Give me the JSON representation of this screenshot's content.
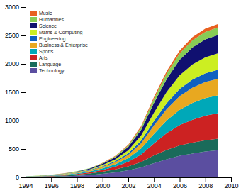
{
  "chart_data": {
    "type": "area",
    "stacked": true,
    "x": [
      1994,
      1995,
      1996,
      1997,
      1998,
      1999,
      2000,
      2001,
      2002,
      2003,
      2004,
      2005,
      2006,
      2007,
      2008,
      2009
    ],
    "series": [
      {
        "name": "Technology",
        "color": "#5b4ea0",
        "values": [
          5,
          8,
          12,
          18,
          28,
          42,
          62,
          88,
          125,
          175,
          250,
          320,
          380,
          420,
          455,
          478
        ]
      },
      {
        "name": "Language",
        "color": "#1a6b5a",
        "values": [
          3,
          5,
          8,
          12,
          18,
          26,
          38,
          52,
          70,
          98,
          138,
          165,
          182,
          192,
          198,
          202
        ]
      },
      {
        "name": "Arts",
        "color": "#cc2222",
        "values": [
          2,
          4,
          6,
          9,
          14,
          20,
          32,
          50,
          80,
          130,
          210,
          295,
          360,
          405,
          435,
          450
        ]
      },
      {
        "name": "Sports",
        "color": "#00a8b8",
        "values": [
          2,
          3,
          5,
          8,
          12,
          18,
          28,
          42,
          65,
          105,
          168,
          225,
          268,
          295,
          310,
          318
        ]
      },
      {
        "name": "Business & Enterprise",
        "color": "#e8a820",
        "values": [
          2,
          3,
          4,
          6,
          10,
          15,
          24,
          36,
          56,
          92,
          150,
          200,
          242,
          268,
          282,
          290
        ]
      },
      {
        "name": "Engineering",
        "color": "#1060c0",
        "values": [
          1,
          2,
          3,
          4,
          6,
          9,
          14,
          20,
          30,
          48,
          78,
          105,
          128,
          144,
          153,
          158
        ]
      },
      {
        "name": "Maths & Computing",
        "color": "#ccee22",
        "values": [
          1,
          2,
          3,
          5,
          8,
          12,
          20,
          32,
          52,
          88,
          148,
          200,
          240,
          268,
          284,
          292
        ]
      },
      {
        "name": "Science",
        "color": "#101070",
        "values": [
          1,
          2,
          3,
          5,
          8,
          13,
          22,
          36,
          60,
          102,
          170,
          228,
          272,
          300,
          315,
          322
        ]
      },
      {
        "name": "Humanities",
        "color": "#88cc55",
        "values": [
          1,
          1,
          2,
          3,
          4,
          6,
          10,
          16,
          26,
          44,
          72,
          96,
          112,
          123,
          130,
          133
        ]
      },
      {
        "name": "Music",
        "color": "#e86020",
        "values": [
          0,
          1,
          1,
          1,
          2,
          3,
          5,
          8,
          12,
          20,
          32,
          42,
          50,
          56,
          59,
          61
        ]
      }
    ],
    "xlim": [
      1994,
      2010
    ],
    "xticks": [
      1994,
      1996,
      1998,
      2000,
      2002,
      2004,
      2006,
      2008,
      2010
    ],
    "ylim": [
      0,
      3000
    ],
    "yticks": [
      0,
      500,
      1000,
      1500,
      2000,
      2500,
      3000
    ],
    "legend": "upper left",
    "grid": false
  }
}
